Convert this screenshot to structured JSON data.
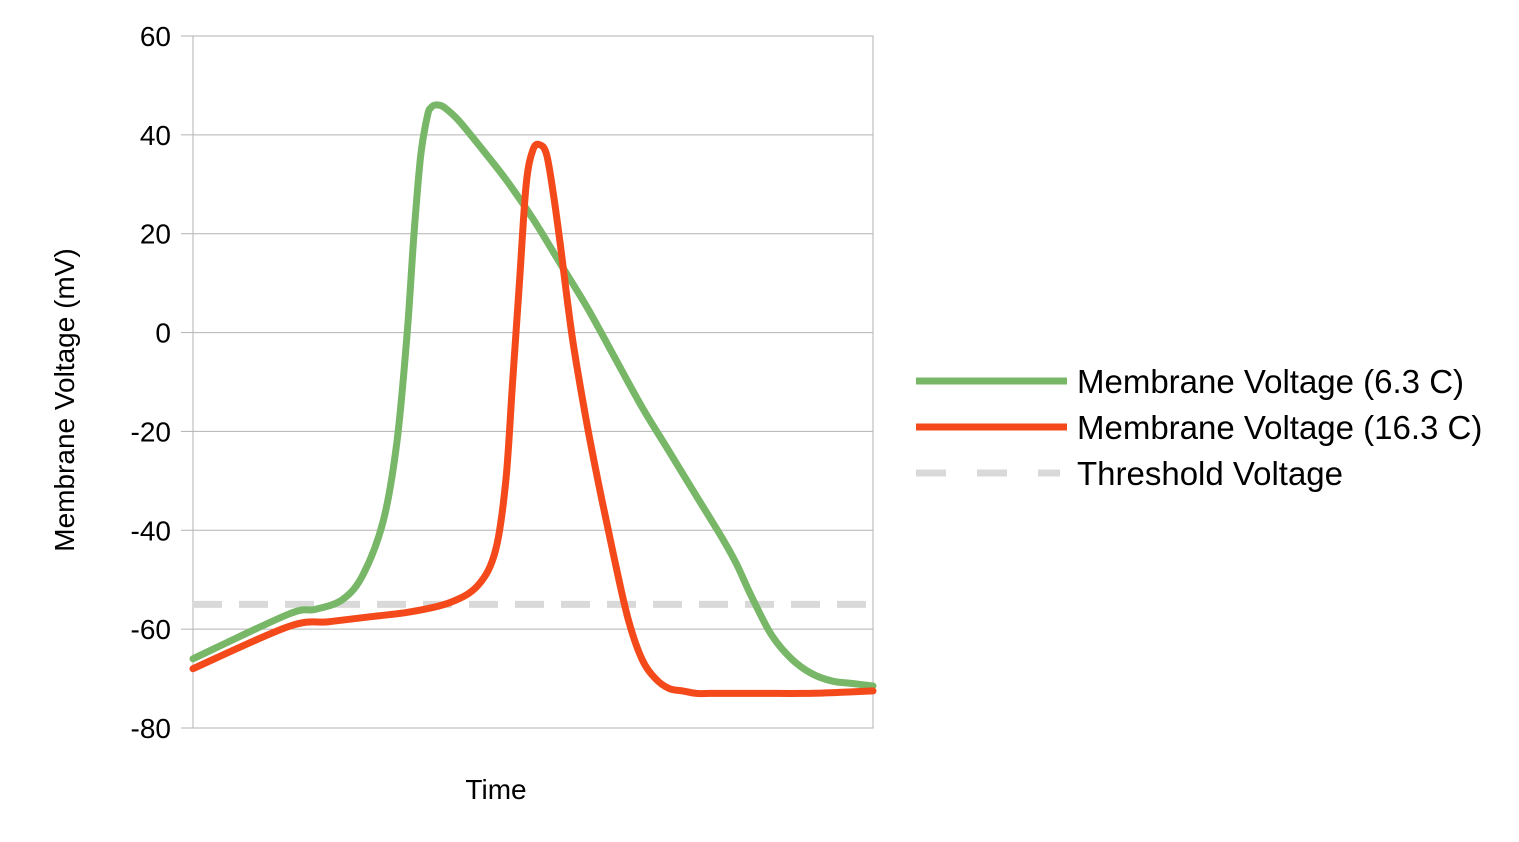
{
  "chart_data": {
    "type": "line",
    "title": "",
    "xlabel": "Time",
    "ylabel": "Membrane Voltage (mV)",
    "ylim": [
      -80,
      60
    ],
    "xlim": [
      0,
      100
    ],
    "yticks": [
      "60",
      "40",
      "20",
      "0",
      "-20",
      "-40",
      "-60",
      "-80"
    ],
    "grid": true,
    "legend_position": "right",
    "series": [
      {
        "name": "Membrane Voltage (6.3 C)",
        "color": "#77b767",
        "dash": false,
        "x": [
          0,
          14,
          18,
          22,
          25,
          28,
          30,
          31.5,
          32.5,
          33.5,
          34.5,
          35,
          35.5,
          36.2,
          37,
          39,
          42,
          46,
          50,
          54,
          58,
          62,
          66,
          70,
          74,
          78,
          80,
          82,
          85,
          88,
          91,
          94,
          97,
          100
        ],
        "y": [
          -66,
          -57,
          -56,
          -54,
          -49,
          -38,
          -22,
          0,
          20,
          36,
          44,
          45.5,
          46,
          46,
          45.5,
          43,
          38,
          31,
          23,
          14,
          5,
          -5,
          -15,
          -24,
          -33,
          -42,
          -47,
          -53,
          -61,
          -66,
          -69,
          -70.5,
          -71,
          -71.5
        ]
      },
      {
        "name": "Membrane Voltage (16.3 C)",
        "color": "#f44a1b",
        "dash": false,
        "x": [
          0,
          14,
          20,
          26,
          32,
          38,
          42,
          44.5,
          46,
          47,
          48,
          49,
          50,
          51,
          52,
          53,
          54,
          55,
          56,
          58,
          60,
          62,
          64,
          66,
          68,
          70,
          72,
          74,
          76,
          78,
          80,
          84,
          90,
          95,
          100
        ],
        "y": [
          -68,
          -59.5,
          -58.5,
          -57.5,
          -56.5,
          -54.5,
          -51,
          -44,
          -30,
          -10,
          10,
          30,
          37,
          38,
          36,
          28,
          18,
          7,
          -3,
          -19,
          -33,
          -46,
          -58,
          -66,
          -70,
          -72,
          -72.5,
          -73,
          -73,
          -73,
          -73,
          -73,
          -73,
          -72.8,
          -72.5
        ]
      },
      {
        "name": "Threshold Voltage",
        "color": "#d9d9d9",
        "dash": true,
        "x": [
          0,
          100
        ],
        "y": [
          -55,
          -55
        ]
      }
    ]
  }
}
